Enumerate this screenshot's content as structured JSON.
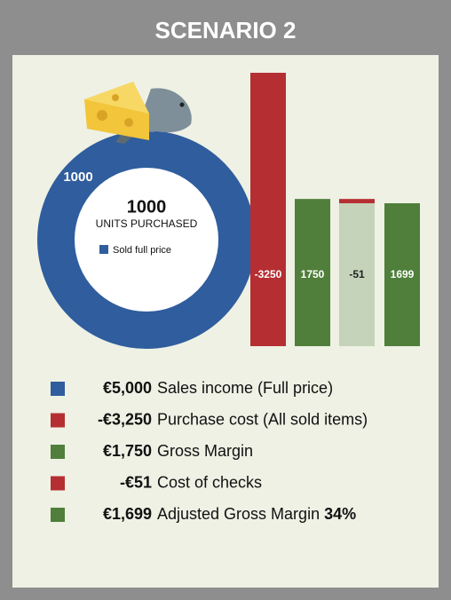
{
  "chart_data": {
    "type": "infographic",
    "title": "SCENARIO 2",
    "donut": {
      "value": 1000,
      "center_value": "1000",
      "center_label": "UNITS PURCHASED",
      "legend": "Sold full price",
      "color": "#2f5d9e"
    },
    "bars": {
      "values": [
        -3250,
        1750,
        -51,
        1699
      ],
      "colors": [
        "#b52f32",
        "#4f7f3a",
        "#b52f32",
        "#4f7f3a"
      ],
      "base_color": "#c4d3b9"
    },
    "rows": [
      {
        "amount": "€5,000",
        "label": "Sales income (Full price)",
        "color": "#2f5d9e"
      },
      {
        "amount": "-€3,250",
        "label": "Purchase cost (All sold items)",
        "color": "#b52f32"
      },
      {
        "amount": "€1,750",
        "label": "Gross Margin",
        "color": "#4f7f3a"
      },
      {
        "amount": "-€51",
        "label": "Cost of checks",
        "color": "#b52f32"
      },
      {
        "amount": "€1,699",
        "label": "Adjusted Gross Margin",
        "percent": "34%",
        "color": "#4f7f3a"
      }
    ]
  }
}
